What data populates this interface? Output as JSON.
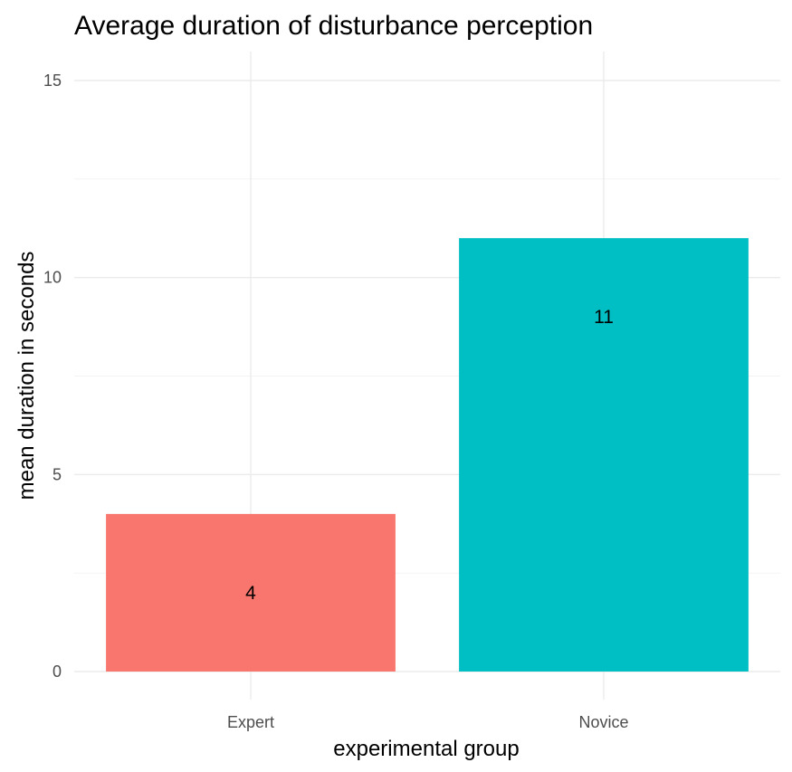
{
  "chart_data": {
    "type": "bar",
    "title": "Average duration of disturbance perception",
    "xlabel": "experimental group",
    "ylabel": "mean duration in seconds",
    "categories": [
      "Expert",
      "Novice"
    ],
    "values": [
      4,
      11
    ],
    "data_labels": [
      "4",
      "11"
    ],
    "bar_colors": [
      "#f8766d",
      "#00bfc4"
    ],
    "ylim": [
      0,
      15
    ],
    "y_ticks": [
      0,
      5,
      10,
      15
    ],
    "y_tick_labels": [
      "0",
      "5",
      "10",
      "15"
    ],
    "grid": true,
    "legend": "none"
  }
}
